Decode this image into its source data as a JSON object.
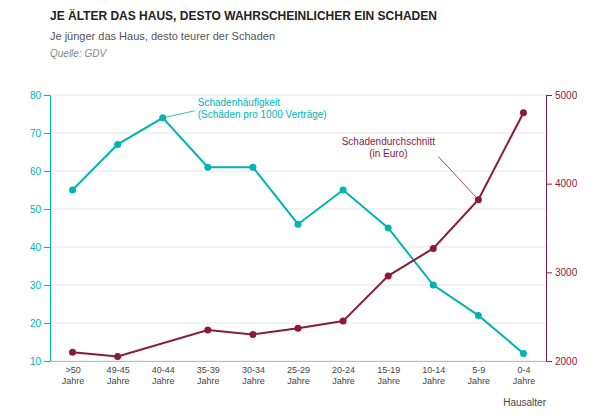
{
  "chart_data": {
    "type": "line",
    "title": "JE ÄLTER DAS HAUS, DESTO WAHRSCHEINLICHER EIN SCHADEN",
    "subtitle": "Je jünger das Haus, desto teurer der Schaden",
    "source": "Quelle: GDV",
    "xlabel": "Hausalter",
    "categories": [
      ">50\nJahre",
      "49-45\nJahre",
      "40-44\nJahre",
      "35-39\nJahre",
      "30-34\nJahre",
      "25-29\nJahre",
      "20-24\nJahre",
      "15-19\nJahre",
      "10-14\nJahre",
      "5-9\nJahre",
      "0-4\nJahre"
    ],
    "series": [
      {
        "name": "Schadenhäufigkeit\n(Schäden pro 1000 Verträge)",
        "color": "#00B4B4",
        "axis": "y",
        "marker": "circle",
        "values": [
          55,
          67,
          74,
          61,
          61,
          46,
          55,
          45,
          30,
          22,
          12
        ]
      },
      {
        "name": "Schadendurchschnitt\n(in Euro)",
        "color": "#8B1A3C",
        "axis": "y2",
        "marker": "circle",
        "x": [
          ">50\nJahre",
          "49-45\nJahre",
          "35-39\nJahre",
          "30-34\nJahre",
          "25-29\nJahre",
          "20-24\nJahre",
          "15-19\nJahre",
          "10-14\nJahre",
          "5-9\nJahre",
          "0-4\nJahre"
        ],
        "values": [
          2100,
          2050,
          2350,
          2300,
          2370,
          2450,
          2960,
          3270,
          3820,
          4800
        ]
      }
    ],
    "ylim": [
      10,
      80
    ],
    "yticks": [
      10,
      20,
      30,
      40,
      50,
      60,
      70,
      80
    ],
    "y2lim": [
      2000,
      5000
    ],
    "y2ticks": [
      2000,
      3000,
      4000,
      5000
    ],
    "grid": true
  }
}
